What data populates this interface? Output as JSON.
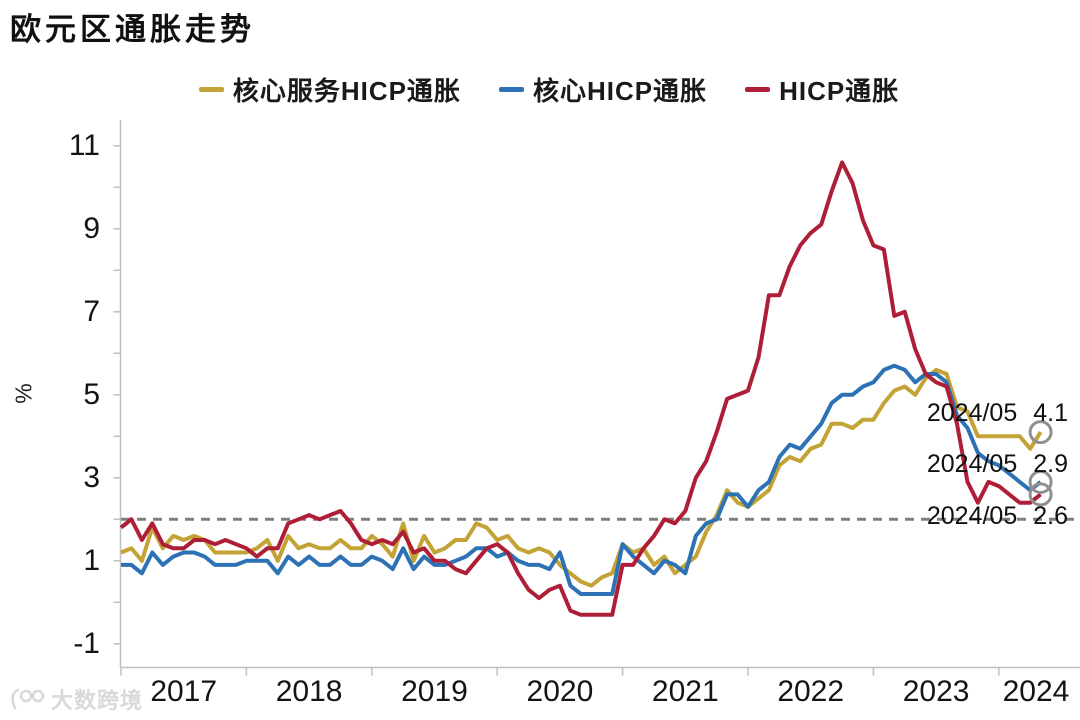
{
  "page": {
    "watermark_text": "大数跨境"
  },
  "chart_data": {
    "type": "line",
    "title": "欧元区通胀走势",
    "ylabel": "%",
    "legend_position": "top",
    "grid": false,
    "x_axis": {
      "labels": [
        "2017",
        "2018",
        "2019",
        "2020",
        "2021",
        "2022",
        "2023",
        "2024"
      ],
      "start": "2017-01",
      "end": "2024-05",
      "freq": "monthly"
    },
    "y_axis": {
      "min": -1.5,
      "max": 11.5,
      "labeled_ticks": [
        11,
        9,
        7,
        5,
        3,
        1,
        -1
      ],
      "minor_tick_step": 1
    },
    "target_line": {
      "value": 2,
      "style": "dashed"
    },
    "end_marker": {
      "shape": "open-circle"
    },
    "colors": {
      "axis": "#BFBFBF",
      "target_line": "#7F7F7F",
      "end_marker": "#8F8F8F",
      "text": "#141414",
      "watermark": "#D9D9D9"
    },
    "series": [
      {
        "name": "核心服务HICP通胀",
        "color": "#C4A336",
        "last_label": {
          "date": "2024/05",
          "value": "4.1"
        },
        "values": [
          1.2,
          1.3,
          1.0,
          1.8,
          1.3,
          1.6,
          1.5,
          1.6,
          1.5,
          1.2,
          1.2,
          1.2,
          1.2,
          1.3,
          1.5,
          1.0,
          1.6,
          1.3,
          1.4,
          1.3,
          1.3,
          1.5,
          1.3,
          1.3,
          1.6,
          1.4,
          1.1,
          1.9,
          1.0,
          1.6,
          1.2,
          1.3,
          1.5,
          1.5,
          1.9,
          1.8,
          1.5,
          1.6,
          1.3,
          1.2,
          1.3,
          1.2,
          0.9,
          0.7,
          0.5,
          0.4,
          0.6,
          0.7,
          1.4,
          1.2,
          1.3,
          0.9,
          1.1,
          0.7,
          0.9,
          1.1,
          1.7,
          2.1,
          2.7,
          2.4,
          2.3,
          2.5,
          2.7,
          3.3,
          3.5,
          3.4,
          3.7,
          3.8,
          4.3,
          4.3,
          4.2,
          4.4,
          4.4,
          4.8,
          5.1,
          5.2,
          5.0,
          5.4,
          5.6,
          5.5,
          4.7,
          4.6,
          4.0,
          4.0,
          4.0,
          4.0,
          4.0,
          3.7,
          4.1
        ]
      },
      {
        "name": "核心HICP通胀",
        "color": "#2C72B4",
        "last_label": {
          "date": "2024/05",
          "value": "2.9"
        },
        "values": [
          0.9,
          0.9,
          0.7,
          1.2,
          0.9,
          1.1,
          1.2,
          1.2,
          1.1,
          0.9,
          0.9,
          0.9,
          1.0,
          1.0,
          1.0,
          0.7,
          1.1,
          0.9,
          1.1,
          0.9,
          0.9,
          1.1,
          0.9,
          0.9,
          1.1,
          1.0,
          0.8,
          1.3,
          0.8,
          1.1,
          0.9,
          0.9,
          1.0,
          1.1,
          1.3,
          1.3,
          1.1,
          1.2,
          1.0,
          0.9,
          0.9,
          0.8,
          1.2,
          0.4,
          0.2,
          0.2,
          0.2,
          0.2,
          1.4,
          1.1,
          0.9,
          0.7,
          1.0,
          0.9,
          0.7,
          1.6,
          1.9,
          2.0,
          2.6,
          2.6,
          2.3,
          2.7,
          2.9,
          3.5,
          3.8,
          3.7,
          4.0,
          4.3,
          4.8,
          5.0,
          5.0,
          5.2,
          5.3,
          5.6,
          5.7,
          5.6,
          5.3,
          5.5,
          5.5,
          5.3,
          4.5,
          4.2,
          3.6,
          3.4,
          3.3,
          3.1,
          2.9,
          2.7,
          2.9
        ]
      },
      {
        "name": "HICP通胀",
        "color": "#AF1E37",
        "last_label": {
          "date": "2024/05",
          "value": "2.6"
        },
        "values": [
          1.8,
          2.0,
          1.5,
          1.9,
          1.4,
          1.3,
          1.3,
          1.5,
          1.5,
          1.4,
          1.5,
          1.4,
          1.3,
          1.1,
          1.3,
          1.3,
          1.9,
          2.0,
          2.1,
          2.0,
          2.1,
          2.2,
          1.9,
          1.5,
          1.4,
          1.5,
          1.4,
          1.7,
          1.2,
          1.3,
          1.0,
          1.0,
          0.8,
          0.7,
          1.0,
          1.3,
          1.4,
          1.2,
          0.7,
          0.3,
          0.1,
          0.3,
          0.4,
          -0.2,
          -0.3,
          -0.3,
          -0.3,
          -0.3,
          0.9,
          0.9,
          1.3,
          1.6,
          2.0,
          1.9,
          2.2,
          3.0,
          3.4,
          4.1,
          4.9,
          5.0,
          5.1,
          5.9,
          7.4,
          7.4,
          8.1,
          8.6,
          8.9,
          9.1,
          9.9,
          10.6,
          10.1,
          9.2,
          8.6,
          8.5,
          6.9,
          7.0,
          6.1,
          5.5,
          5.3,
          5.2,
          4.3,
          2.9,
          2.4,
          2.9,
          2.8,
          2.6,
          2.4,
          2.4,
          2.6
        ]
      }
    ]
  }
}
